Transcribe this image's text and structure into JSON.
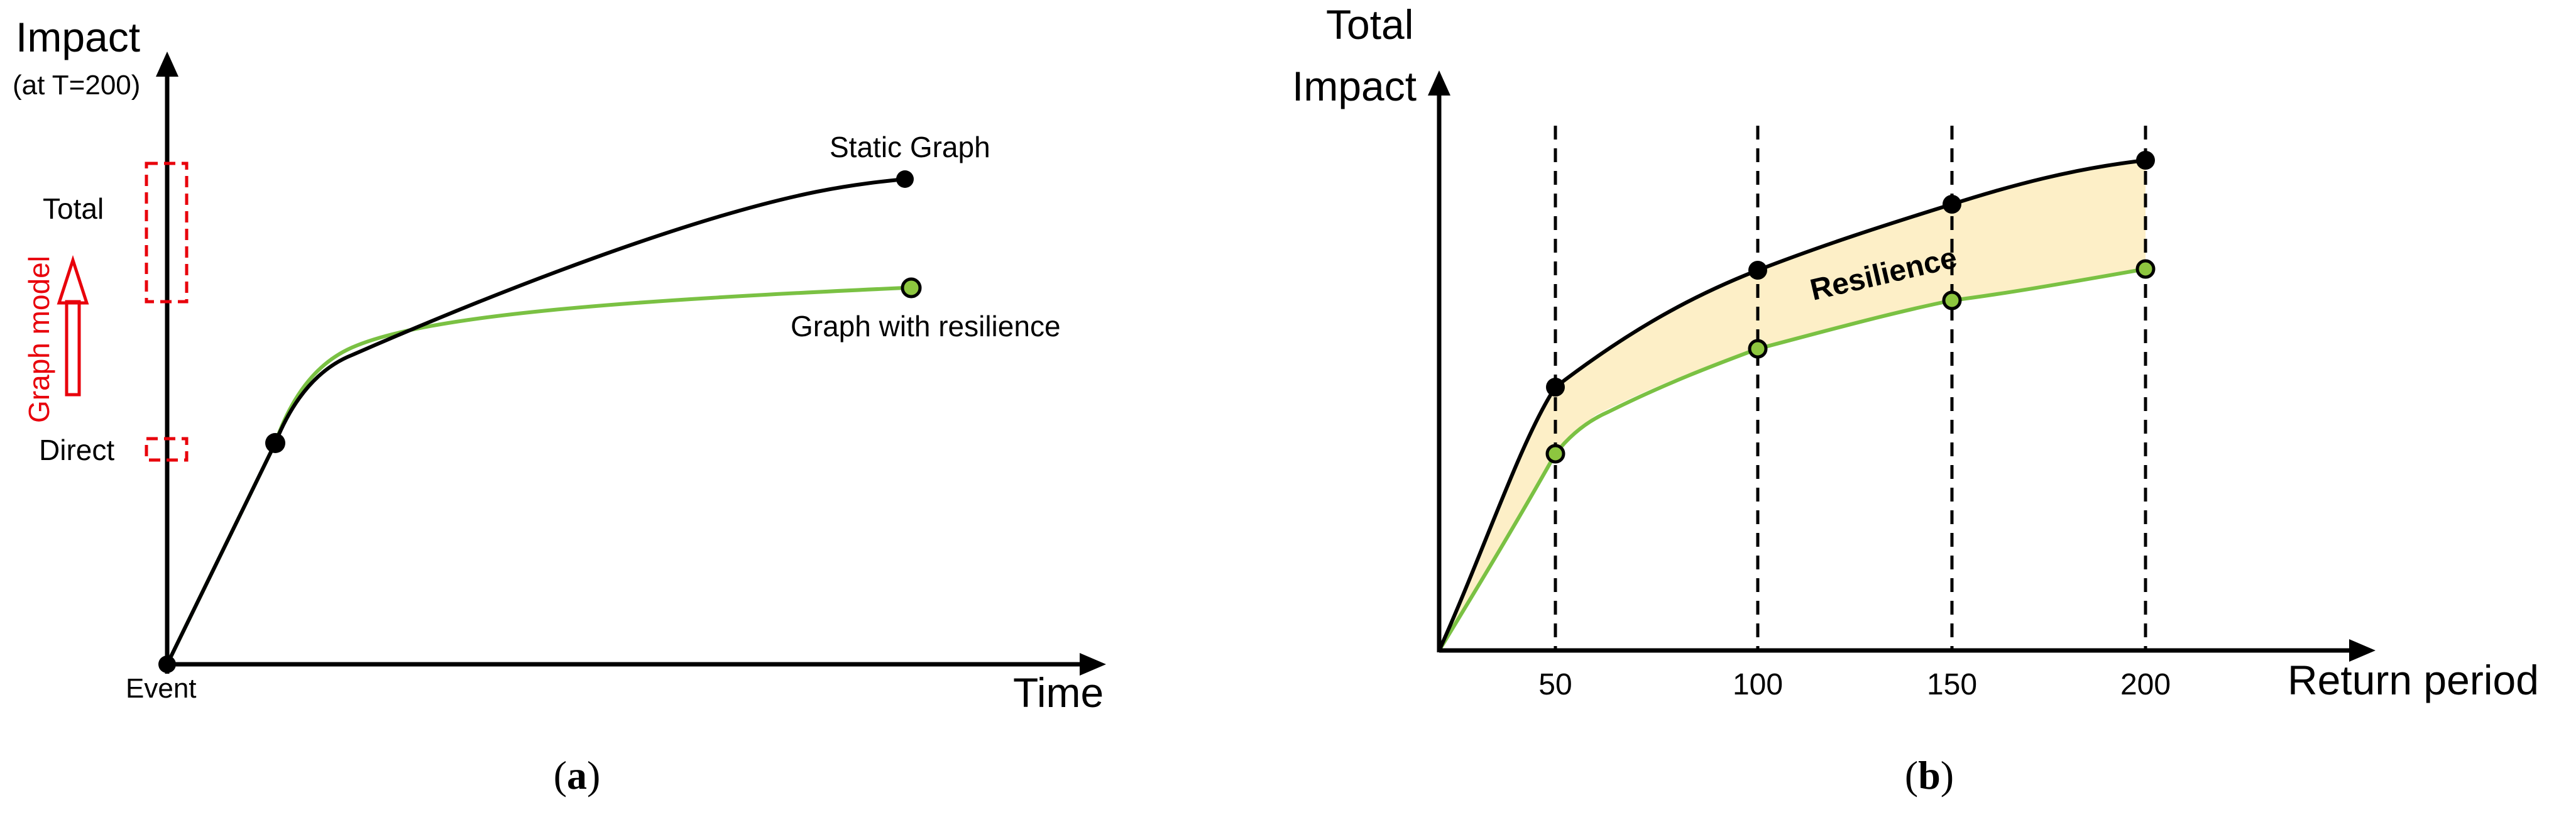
{
  "colors": {
    "axis": "#000000",
    "static_curve": "#000000",
    "resilience_curve": "#7ac143",
    "resilience_marker_fill": "#8dc63f",
    "fill_area": "#fdefc7",
    "graph_model": "#e8000b"
  },
  "panel_a": {
    "y_label_line1": "Impact",
    "y_label_line2": "(at T=200)",
    "x_label": "Time",
    "origin_label": "Event",
    "total_label": "Total",
    "direct_label": "Direct",
    "graph_model_label": "Graph model",
    "static_label": "Static Graph",
    "resilience_label": "Graph with resilience",
    "caption_open": "(",
    "caption_letter": "a",
    "caption_close": ")"
  },
  "panel_b": {
    "y_label_line1": "Total",
    "y_label_line2": "Impact",
    "x_label": "Return period",
    "ticks": [
      "50",
      "100",
      "150",
      "200"
    ],
    "area_label": "Resilience",
    "caption_open": "(",
    "caption_letter": "b",
    "caption_close": ")"
  }
}
